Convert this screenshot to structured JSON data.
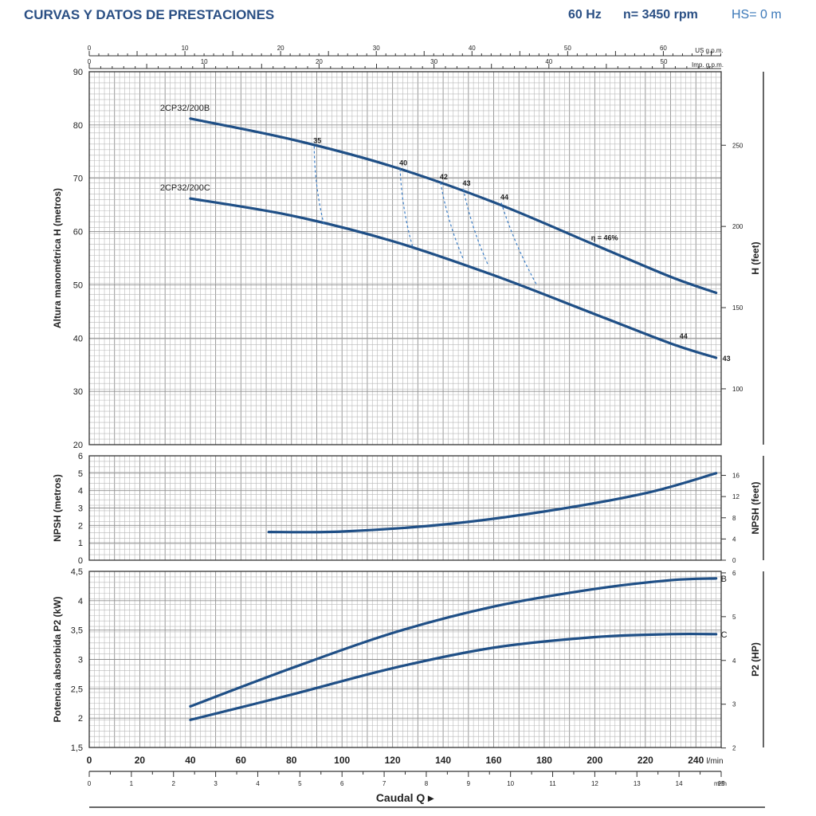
{
  "header": {
    "title": "CURVAS Y DATOS DE PRESTACIONES",
    "frequency": "60 Hz",
    "speed": "n= 3450 rpm",
    "hs": "HS= 0 m"
  },
  "chart_data": [
    {
      "type": "line",
      "panel": "head",
      "ylabel": "Altura manométrica H (metros)",
      "ylabel_right": "H (feet)",
      "xlim": [
        0,
        250
      ],
      "ylim": [
        20,
        90
      ],
      "yticks": [
        20,
        30,
        40,
        50,
        60,
        70,
        80,
        90
      ],
      "yticks_right": [
        100,
        150,
        200,
        250
      ],
      "top_axes": [
        {
          "label": "US g.p.m.",
          "ticks": [
            0,
            10,
            20,
            30,
            40,
            50,
            60
          ]
        },
        {
          "label": "Imp. g.p.m.",
          "ticks": [
            0,
            10,
            20,
            30,
            40,
            50
          ]
        }
      ],
      "series": [
        {
          "name": "2CP32/200B",
          "x": [
            40,
            80,
            120,
            160,
            200,
            230,
            248
          ],
          "y": [
            81.2,
            77.3,
            72.2,
            65.5,
            57.5,
            51.5,
            48.5
          ]
        },
        {
          "name": "2CP32/200C",
          "x": [
            40,
            80,
            120,
            160,
            200,
            230,
            248
          ],
          "y": [
            66.2,
            63.0,
            58.2,
            51.8,
            44.5,
            39.0,
            36.3
          ]
        }
      ],
      "efficiency_lines": [
        {
          "label": "35",
          "x": [
            89,
            93
          ],
          "y": [
            76,
            61
          ]
        },
        {
          "label": "40",
          "x": [
            123,
            128
          ],
          "y": [
            71.8,
            57
          ]
        },
        {
          "label": "42",
          "x": [
            139,
            148
          ],
          "y": [
            69.2,
            54.8
          ]
        },
        {
          "label": "43",
          "x": [
            148,
            158
          ],
          "y": [
            68,
            53.5
          ]
        },
        {
          "label": "44",
          "x": [
            163,
            177
          ],
          "y": [
            65.4,
            50
          ]
        }
      ],
      "annotations": [
        {
          "text": "η = 46%",
          "x": 196,
          "y": 59
        },
        {
          "text": "44",
          "x": 231,
          "y": 40.5
        },
        {
          "text": "43",
          "x": 248,
          "y": 36.3
        }
      ]
    },
    {
      "type": "line",
      "panel": "npsh",
      "ylabel": "NPSH (metros)",
      "ylabel_right": "NPSH (feet)",
      "xlim": [
        0,
        250
      ],
      "ylim": [
        0,
        6
      ],
      "yticks": [
        0,
        1,
        2,
        3,
        4,
        5,
        6
      ],
      "yticks_right": [
        0,
        4,
        8,
        12,
        16
      ],
      "series": [
        {
          "name": "NPSH",
          "x": [
            71,
            100,
            140,
            180,
            220,
            248
          ],
          "y": [
            1.62,
            1.65,
            2.05,
            2.8,
            3.85,
            5.0
          ]
        }
      ]
    },
    {
      "type": "line",
      "panel": "power",
      "ylabel": "Potencia absorbida P2 (kW)",
      "ylabel_right": "P2 (HP)",
      "xlim": [
        0,
        250
      ],
      "ylim": [
        1.5,
        4.5
      ],
      "yticks": [
        1.5,
        2.0,
        2.5,
        3.0,
        3.5,
        4.0,
        4.5
      ],
      "yticks_right": [
        2,
        3,
        4,
        5,
        6
      ],
      "series": [
        {
          "name": "B",
          "x": [
            40,
            80,
            120,
            160,
            200,
            230,
            248
          ],
          "y": [
            2.2,
            2.85,
            3.45,
            3.9,
            4.2,
            4.35,
            4.38
          ]
        },
        {
          "name": "C",
          "x": [
            40,
            80,
            120,
            160,
            200,
            230,
            248
          ],
          "y": [
            1.97,
            2.4,
            2.85,
            3.2,
            3.38,
            3.43,
            3.43
          ]
        }
      ]
    }
  ],
  "x_axis": {
    "title": "Caudal Q",
    "lmin_ticks": [
      0,
      20,
      40,
      60,
      80,
      100,
      120,
      140,
      160,
      180,
      200,
      220,
      240
    ],
    "lmin_unit": "l/min",
    "m3h_ticks": [
      0,
      1,
      2,
      3,
      4,
      5,
      6,
      7,
      8,
      9,
      10,
      11,
      12,
      13,
      14,
      15
    ],
    "m3h_unit": "m³/h"
  },
  "colors": {
    "curve": "#1f4f86",
    "efficiency": "#3a7cc4",
    "header": "#2a4f84",
    "grid": "#b8b8b8"
  }
}
